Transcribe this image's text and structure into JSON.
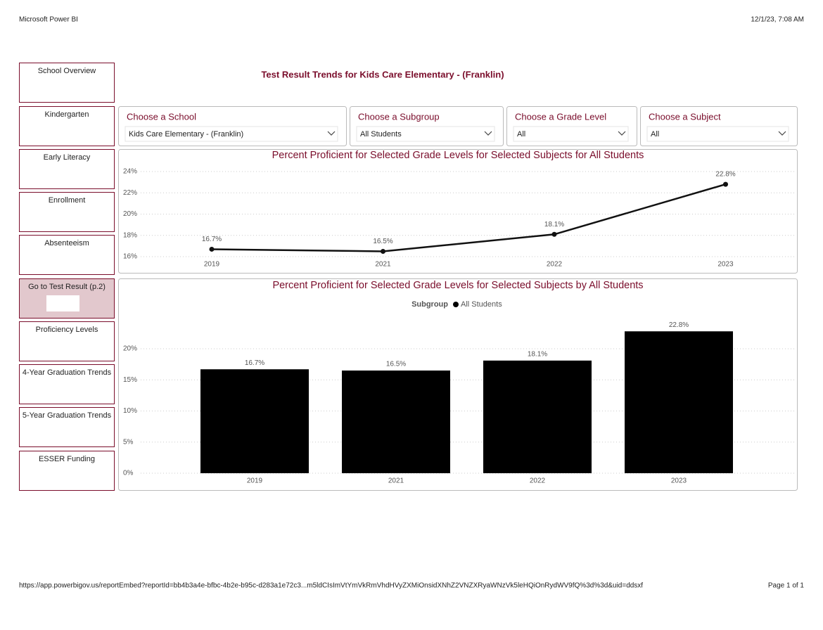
{
  "header": {
    "app": "Microsoft Power BI",
    "timestamp": "12/1/23, 7:08 AM"
  },
  "title": "Test Result Trends for Kids Care Elementary -  (Franklin)",
  "nav": [
    "School Overview",
    "Kindergarten",
    "Early Literacy",
    "Enrollment",
    "Absenteeism",
    "Go to Test Result (p.2)",
    "Proficiency Levels",
    "4-Year Graduation Trends",
    "5-Year Graduation Trends",
    "ESSER Funding"
  ],
  "filters": [
    {
      "label": "Choose a School",
      "value": "Kids Care Elementary - (Franklin)"
    },
    {
      "label": "Choose a Subgroup",
      "value": "All Students"
    },
    {
      "label": "Choose a Grade Level",
      "value": "All"
    },
    {
      "label": "Choose a Subject",
      "value": "All"
    }
  ],
  "chart_data": [
    {
      "type": "line",
      "title": "Percent Proficient for Selected Grade Levels for Selected Subjects for All Students",
      "categories": [
        "2019",
        "2021",
        "2022",
        "2023"
      ],
      "values": [
        16.7,
        16.5,
        18.1,
        22.8
      ],
      "value_labels": [
        "16.7%",
        "16.5%",
        "18.1%",
        "22.8%"
      ],
      "color": "#111111",
      "ylim": [
        15.7,
        24.3
      ],
      "yticks": [
        {
          "value": 16,
          "label": "16%"
        },
        {
          "value": 18,
          "label": "18%"
        },
        {
          "value": 20,
          "label": "20%"
        },
        {
          "value": 22,
          "label": "22%"
        },
        {
          "value": 24,
          "label": "24%"
        }
      ],
      "grid": true
    },
    {
      "type": "bar",
      "title": "Percent Proficient for Selected Grade Levels for Selected Subjects by All Students",
      "legend_title": "Subgroup",
      "categories": [
        "2019",
        "2021",
        "2022",
        "2023"
      ],
      "series": [
        {
          "name": "All Students",
          "color": "#000000",
          "values": [
            16.7,
            16.5,
            18.1,
            22.8
          ],
          "value_labels": [
            "16.7%",
            "16.5%",
            "18.1%",
            "22.8%"
          ]
        }
      ],
      "ylim": [
        0,
        24
      ],
      "yticks": [
        {
          "value": 0,
          "label": "0%"
        },
        {
          "value": 5,
          "label": "5%"
        },
        {
          "value": 10,
          "label": "10%"
        },
        {
          "value": 15,
          "label": "15%"
        },
        {
          "value": 20,
          "label": "20%"
        }
      ],
      "grid": true
    }
  ],
  "footer": {
    "url": "https://app.powerbigov.us/reportEmbed?reportId=bb4b3a4e-bfbc-4b2e-b95c-d283a1e72c3...m5ldCIsImVtYmVkRmVhdHVyZXMiOnsidXNhZ2VNZXRyaWNzVk5leHQiOnRydWV9fQ%3d%3d&uid=ddsxf",
    "page": "Page 1 of 1"
  }
}
